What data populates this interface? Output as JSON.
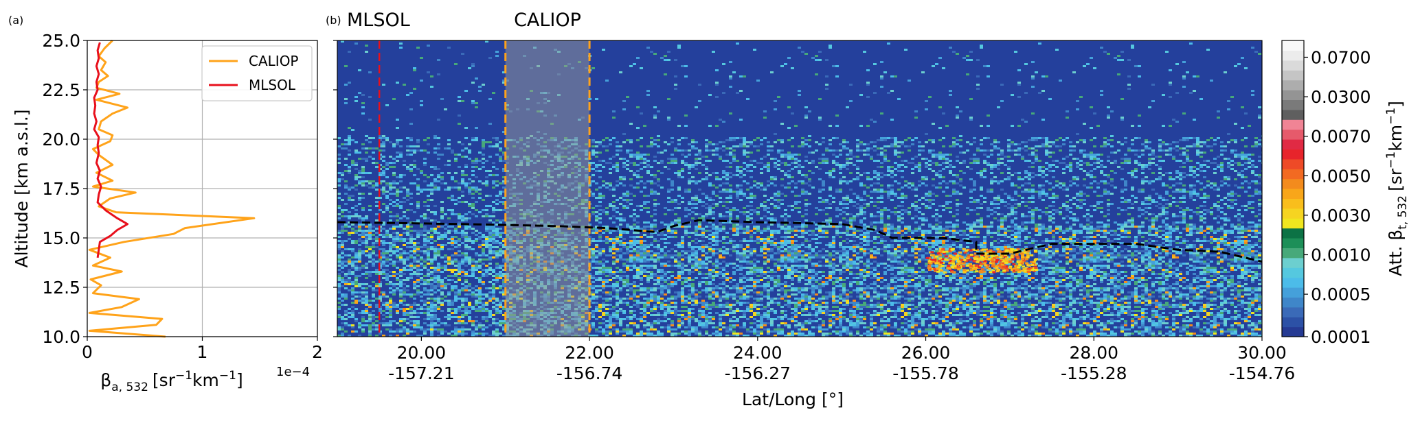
{
  "colors": {
    "caliop": "#ffa31a",
    "mlsol": "#e8101c",
    "background": "#24409c",
    "tropopause": "#000000"
  },
  "chart_data": [
    {
      "panel": "(a)",
      "type": "line",
      "xlabel_main": "β",
      "xlabel_sub": "a, 532",
      "xlabel_unit_parts": [
        "[sr",
        "−1",
        "km",
        "−1",
        "]"
      ],
      "x_multiplier": "1e−4",
      "ylabel": "Altitude [km a.s.l.]",
      "xlim": [
        0,
        2
      ],
      "ylim": [
        10,
        25
      ],
      "xticks": [
        "0",
        "1",
        "2"
      ],
      "yticks": [
        "10.0",
        "12.5",
        "15.0",
        "17.5",
        "20.0",
        "22.5",
        "25.0"
      ],
      "grid": true,
      "legend_position": "top-right",
      "series": [
        {
          "name": "CALIOP",
          "color": "#ffa31a",
          "points": [
            [
              0.68,
              10.0
            ],
            [
              0.02,
              10.3
            ],
            [
              0.6,
              10.6
            ],
            [
              0.65,
              10.9
            ],
            [
              0.02,
              11.2
            ],
            [
              0.3,
              11.5
            ],
            [
              0.45,
              11.9
            ],
            [
              0.05,
              12.2
            ],
            [
              0.12,
              12.6
            ],
            [
              0.03,
              12.9
            ],
            [
              0.3,
              13.3
            ],
            [
              0.05,
              13.6
            ],
            [
              0.2,
              14.0
            ],
            [
              0.02,
              14.4
            ],
            [
              0.32,
              14.8
            ],
            [
              0.75,
              15.2
            ],
            [
              0.85,
              15.5
            ],
            [
              1.45,
              16.0
            ],
            [
              0.25,
              16.3
            ],
            [
              0.1,
              16.6
            ],
            [
              0.2,
              17.0
            ],
            [
              0.42,
              17.3
            ],
            [
              0.05,
              17.6
            ],
            [
              0.22,
              17.9
            ],
            [
              0.08,
              18.3
            ],
            [
              0.22,
              18.7
            ],
            [
              0.1,
              19.2
            ],
            [
              0.05,
              19.5
            ],
            [
              0.2,
              19.9
            ],
            [
              0.22,
              20.2
            ],
            [
              0.1,
              20.5
            ],
            [
              0.12,
              20.9
            ],
            [
              0.22,
              21.3
            ],
            [
              0.35,
              21.6
            ],
            [
              0.08,
              22.0
            ],
            [
              0.28,
              22.3
            ],
            [
              0.08,
              22.6
            ],
            [
              0.1,
              22.9
            ],
            [
              0.18,
              23.2
            ],
            [
              0.12,
              23.5
            ],
            [
              0.16,
              23.9
            ],
            [
              0.1,
              24.2
            ],
            [
              0.15,
              24.6
            ],
            [
              0.22,
              25.0
            ]
          ]
        },
        {
          "name": "MLSOL",
          "color": "#e8101c",
          "points": [
            [
              0.09,
              14.0
            ],
            [
              0.1,
              14.4
            ],
            [
              0.11,
              14.8
            ],
            [
              0.2,
              15.1
            ],
            [
              0.26,
              15.4
            ],
            [
              0.35,
              15.7
            ],
            [
              0.26,
              16.0
            ],
            [
              0.16,
              16.4
            ],
            [
              0.09,
              16.8
            ],
            [
              0.1,
              17.2
            ],
            [
              0.12,
              17.6
            ],
            [
              0.09,
              18.0
            ],
            [
              0.11,
              18.4
            ],
            [
              0.08,
              18.8
            ],
            [
              0.1,
              19.3
            ],
            [
              0.09,
              19.7
            ],
            [
              0.1,
              20.1
            ],
            [
              0.06,
              20.5
            ],
            [
              0.08,
              20.9
            ],
            [
              0.06,
              21.3
            ],
            [
              0.07,
              21.7
            ],
            [
              0.06,
              22.1
            ],
            [
              0.09,
              22.5
            ],
            [
              0.08,
              22.9
            ],
            [
              0.1,
              23.3
            ],
            [
              0.08,
              23.7
            ],
            [
              0.1,
              24.1
            ],
            [
              0.09,
              24.5
            ],
            [
              0.11,
              24.9
            ]
          ]
        }
      ]
    },
    {
      "panel": "(b)",
      "type": "heatmap",
      "xlabel": "Lat/Long [°]",
      "xlim": [
        19,
        30
      ],
      "ylim": [
        10,
        25
      ],
      "xticks": [
        {
          "lat": "20.00",
          "lon": "-157.21",
          "value": 20
        },
        {
          "lat": "22.00",
          "lon": "-156.74",
          "value": 22
        },
        {
          "lat": "24.00",
          "lon": "-156.27",
          "value": 24
        },
        {
          "lat": "26.00",
          "lon": "-155.78",
          "value": 26
        },
        {
          "lat": "28.00",
          "lon": "-155.28",
          "value": 28
        },
        {
          "lat": "30.00",
          "lon": "-154.76",
          "value": 30
        }
      ],
      "markers": [
        {
          "label": "MLSOL",
          "color": "#e8101c",
          "x": 19.5
        },
        {
          "label": "CALIOP",
          "color": "#ffa31a",
          "x_start": 21.0,
          "x_end": 22.0
        }
      ],
      "tropopause": [
        [
          19.0,
          15.8
        ],
        [
          20.5,
          15.7
        ],
        [
          21.6,
          15.6
        ],
        [
          22.2,
          15.5
        ],
        [
          22.8,
          15.3
        ],
        [
          23.0,
          15.6
        ],
        [
          23.3,
          15.9
        ],
        [
          24.0,
          15.8
        ],
        [
          25.0,
          15.7
        ],
        [
          25.4,
          15.4
        ],
        [
          25.6,
          15.0
        ],
        [
          26.2,
          15.0
        ],
        [
          26.6,
          14.8
        ],
        [
          26.6,
          14.2
        ],
        [
          27.0,
          14.2
        ],
        [
          27.5,
          14.7
        ],
        [
          28.5,
          14.7
        ],
        [
          29.0,
          14.4
        ],
        [
          29.5,
          14.3
        ],
        [
          29.8,
          14.0
        ],
        [
          30.0,
          13.8
        ]
      ],
      "colorbar": {
        "label_main": "Att. β",
        "label_sub": "t, 532",
        "label_unit_parts": [
          "[sr",
          "−1",
          "km",
          "−1",
          "]"
        ],
        "ticks": [
          "0.0001",
          "0.0005",
          "0.0010",
          "0.0030",
          "0.0050",
          "0.0070",
          "0.0300",
          "0.0700"
        ],
        "colors": [
          "#253a93",
          "#2c51a6",
          "#3a6ab8",
          "#3f86c9",
          "#45a0da",
          "#4cbce9",
          "#55c8df",
          "#6ccfcf",
          "#47a97a",
          "#1d8f58",
          "#0c7245",
          "#f0e61f",
          "#f6d421",
          "#f9be1c",
          "#f8a61a",
          "#f38b1d",
          "#f26a22",
          "#ee4a27",
          "#e7242b",
          "#e02a44",
          "#e65a6b",
          "#f08495",
          "#5f5f5f",
          "#7a7a7a",
          "#949494",
          "#adadad",
          "#c5c5c5",
          "#dadada",
          "#ececec",
          "#f8f8f8"
        ]
      }
    }
  ]
}
